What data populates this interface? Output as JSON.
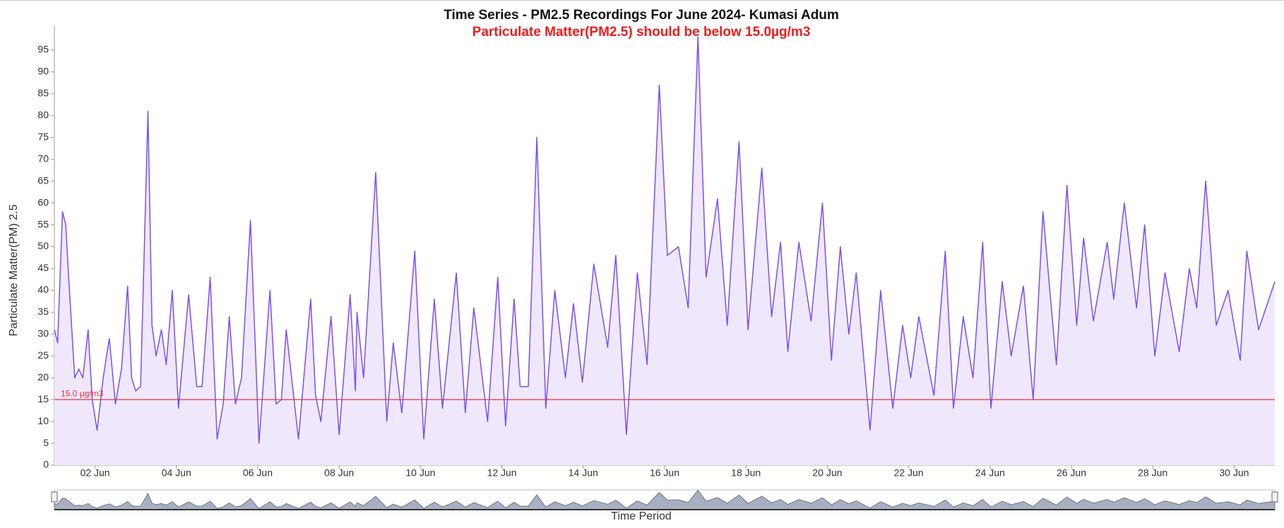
{
  "chart_data": {
    "type": "area",
    "title": "Time Series - PM2.5 Recordings For June 2024- Kumasi Adum",
    "subtitle": "Particulate Matter(PM2.5) should be below 15.0µg/m3",
    "y_label": "Particulate Matter(PM) 2.5",
    "x_label": "Time Period",
    "range_box": "30",
    "threshold": {
      "value": 15,
      "label": "15.0 µg/m3",
      "color": "#e8313a"
    },
    "xlim": [
      1,
      31
    ],
    "xticks": [
      {
        "value": 2,
        "label": "02 Jun"
      },
      {
        "value": 4,
        "label": "04 Jun"
      },
      {
        "value": 6,
        "label": "06 Jun"
      },
      {
        "value": 8,
        "label": "08 Jun"
      },
      {
        "value": 10,
        "label": "10 Jun"
      },
      {
        "value": 12,
        "label": "12 Jun"
      },
      {
        "value": 14,
        "label": "14 Jun"
      },
      {
        "value": 16,
        "label": "16 Jun"
      },
      {
        "value": 18,
        "label": "18 Jun"
      },
      {
        "value": 20,
        "label": "20 Jun"
      },
      {
        "value": 22,
        "label": "22 Jun"
      },
      {
        "value": 24,
        "label": "24 Jun"
      },
      {
        "value": 26,
        "label": "26 Jun"
      },
      {
        "value": 28,
        "label": "28 Jun"
      },
      {
        "value": 30,
        "label": "30 Jun"
      }
    ],
    "ylim": [
      0,
      100
    ],
    "yticks": [
      0,
      5,
      10,
      15,
      20,
      25,
      30,
      35,
      40,
      45,
      50,
      55,
      60,
      65,
      70,
      75,
      80,
      85,
      90,
      95
    ],
    "series": [
      {
        "name": "PM2.5",
        "color": "#7b4ff0",
        "fill": "#efe8fd",
        "x": [
          1.0,
          1.08,
          1.2,
          1.28,
          1.35,
          1.5,
          1.6,
          1.7,
          1.83,
          1.93,
          2.05,
          2.2,
          2.35,
          2.5,
          2.65,
          2.8,
          2.9,
          3.0,
          3.12,
          3.3,
          3.4,
          3.5,
          3.63,
          3.75,
          3.9,
          4.05,
          4.3,
          4.5,
          4.63,
          4.83,
          5.0,
          5.15,
          5.3,
          5.45,
          5.6,
          5.82,
          6.03,
          6.3,
          6.45,
          6.58,
          6.7,
          7.0,
          7.3,
          7.42,
          7.55,
          7.8,
          8.0,
          8.27,
          8.4,
          8.44,
          8.6,
          8.9,
          9.17,
          9.33,
          9.54,
          9.86,
          10.08,
          10.34,
          10.54,
          10.88,
          11.1,
          11.31,
          11.65,
          11.9,
          12.09,
          12.3,
          12.45,
          12.65,
          12.86,
          13.08,
          13.3,
          13.56,
          13.76,
          13.98,
          14.26,
          14.6,
          14.8,
          15.06,
          15.33,
          15.57,
          15.87,
          16.07,
          16.34,
          16.58,
          16.82,
          17.02,
          17.3,
          17.54,
          17.83,
          18.05,
          18.39,
          18.63,
          18.85,
          19.03,
          19.3,
          19.6,
          19.88,
          20.1,
          20.32,
          20.53,
          20.71,
          21.05,
          21.31,
          21.61,
          21.85,
          22.05,
          22.25,
          22.62,
          22.9,
          23.1,
          23.34,
          23.58,
          23.82,
          24.02,
          24.3,
          24.52,
          24.82,
          25.06,
          25.3,
          25.63,
          25.89,
          26.13,
          26.3,
          26.54,
          26.88,
          27.04,
          27.3,
          27.6,
          27.8,
          28.05,
          28.3,
          28.65,
          28.9,
          29.08,
          29.3,
          29.56,
          29.85,
          30.15,
          30.31,
          30.6,
          31.0
        ],
        "values": [
          31,
          28,
          58,
          55,
          43,
          20,
          22,
          20,
          31,
          15,
          8,
          20,
          29,
          14,
          22,
          41,
          20,
          17,
          18,
          81,
          32,
          25,
          31,
          23,
          40,
          13,
          39,
          18,
          18,
          43,
          6,
          14,
          34,
          14,
          20,
          56,
          5,
          40,
          14,
          15,
          31,
          6,
          38,
          16,
          10,
          34,
          7,
          39,
          17,
          35,
          20,
          67,
          10,
          28,
          12,
          49,
          6,
          38,
          13,
          44,
          12,
          36,
          10,
          43,
          9,
          38,
          18,
          18,
          75,
          13,
          40,
          20,
          37,
          19,
          46,
          27,
          48,
          7,
          44,
          23,
          87,
          48,
          50,
          36,
          98,
          43,
          61,
          32,
          74,
          31,
          68,
          34,
          51,
          26,
          51,
          33,
          60,
          24,
          50,
          30,
          44,
          8,
          40,
          13,
          32,
          20,
          34,
          16,
          49,
          13,
          34,
          20,
          51,
          13,
          42,
          25,
          41,
          15,
          58,
          23,
          64,
          32,
          52,
          33,
          51,
          38,
          60,
          36,
          55,
          25,
          44,
          26,
          45,
          36,
          65,
          32,
          40,
          24,
          49,
          31,
          42
        ]
      }
    ]
  }
}
